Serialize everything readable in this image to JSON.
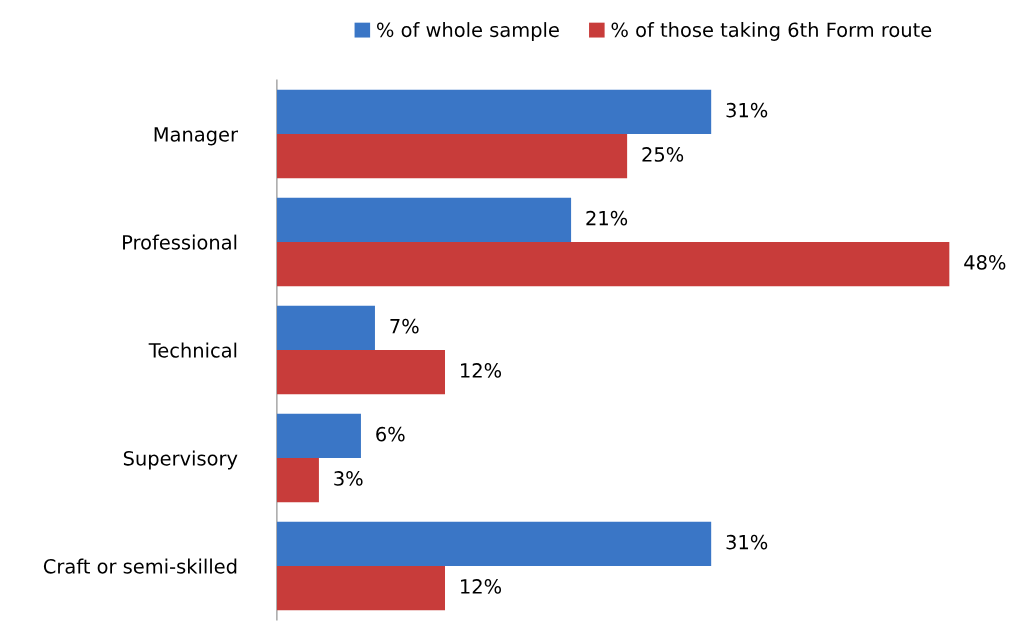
{
  "chart_data": {
    "type": "bar",
    "orientation": "horizontal",
    "categories": [
      "Manager",
      "Professional",
      "Technical",
      "Supervisory",
      "Craft or semi-skilled"
    ],
    "series": [
      {
        "name": "% of whole sample",
        "color": "#3a76c6",
        "values": [
          31,
          21,
          7,
          6,
          31
        ],
        "value_labels": [
          "31%",
          "21%",
          "7%",
          "6%",
          "31%"
        ]
      },
      {
        "name": "% of those taking 6th Form route",
        "color": "#c83c3a",
        "values": [
          25,
          48,
          12,
          3,
          12
        ],
        "value_labels": [
          "25%",
          "48%",
          "12%",
          "3%",
          "12%"
        ]
      }
    ],
    "legend": "top"
  }
}
